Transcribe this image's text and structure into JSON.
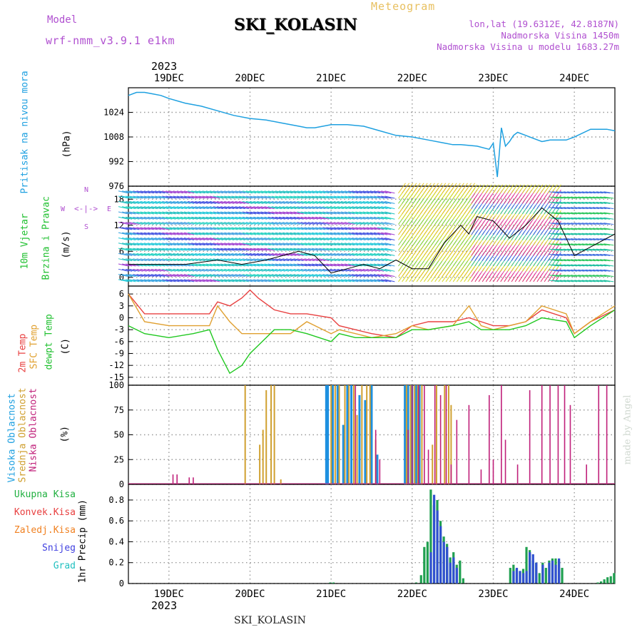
{
  "header": {
    "title": "SKI_KOLASIN",
    "subtitle": "Meteogram",
    "model_label": "Model",
    "model_name": "wrf-nmm_v3.9.1 e1km",
    "location": "lon,lat (19.6312E, 42.8187N)",
    "elevation": "Nadmorska Visina 1450m",
    "model_elevation": "Nadmorska Visina u modelu 1683.27m",
    "footer_title": "SKI_KOLASIN",
    "credit": "made by Angel"
  },
  "colors": {
    "pressure": "#1ea0e0",
    "temp2m": "#e84040",
    "sfc": "#e0a030",
    "dewpt": "#20c820",
    "high_cloud": "#1e90e0",
    "mid_cloud": "#d0a030",
    "low_cloud": "#c0207a",
    "total_precip": "#20b040",
    "conv_precip": "#e84040",
    "frozen_precip": "#f08020",
    "snow": "#4040e0",
    "hail": "#20c0c0",
    "model_text": "#b050d0"
  },
  "x_axis": {
    "year": "2023",
    "day_labels": [
      "19DEC",
      "20DEC",
      "21DEC",
      "22DEC",
      "23DEC",
      "24DEC"
    ],
    "range_days": [
      -0.5,
      5.5
    ]
  },
  "panel_labels": {
    "pressure": [
      "Pritisak na nivou mora",
      "(hPa)"
    ],
    "wind": [
      "10m Vjetar",
      "Brzina i Pravac",
      "(m/s)"
    ],
    "wind_rose": [
      "N",
      "S",
      "W",
      "E"
    ],
    "temp": [
      "2m Temp",
      "SFC Temp",
      "dewpt Temp",
      "(C)"
    ],
    "cloud": [
      "Visoka Oblacnost",
      "Srednja Oblacnost",
      "Niska Oblacnost",
      "(%)"
    ],
    "precip_y": "1hr Precip (mm)",
    "precip_legend": [
      "Ukupna Kisa",
      "Konvek.Kisa",
      "Zaledj.Kisa",
      "Snijeg",
      "Grad"
    ]
  },
  "chart_data": [
    {
      "type": "line",
      "panel": "pressure",
      "ylabel": "(hPa)",
      "ylim": [
        976,
        1040
      ],
      "yticks": [
        976,
        992,
        1008,
        1024
      ],
      "series": [
        {
          "name": "Pritisak na nivou mora",
          "x": [
            -0.5,
            -0.4,
            -0.3,
            -0.2,
            -0.1,
            0,
            0.2,
            0.4,
            0.6,
            0.8,
            1.0,
            1.2,
            1.4,
            1.6,
            1.7,
            1.8,
            2.0,
            2.2,
            2.4,
            2.6,
            2.8,
            3.0,
            3.2,
            3.4,
            3.5,
            3.6,
            3.8,
            3.95,
            4.0,
            4.05,
            4.1,
            4.15,
            4.2,
            4.25,
            4.3,
            4.4,
            4.5,
            4.6,
            4.7,
            4.8,
            4.9,
            5.0,
            5.2,
            5.4,
            5.5
          ],
          "values": [
            1035,
            1037,
            1037,
            1036,
            1035,
            1033,
            1030,
            1028,
            1025,
            1022,
            1020,
            1019,
            1017,
            1015,
            1014,
            1014,
            1016,
            1016,
            1015,
            1012,
            1009,
            1008,
            1006,
            1004,
            1003,
            1003,
            1002,
            1000,
            1004,
            982,
            1014,
            1002,
            1005,
            1009,
            1011,
            1009,
            1007,
            1005,
            1006,
            1006,
            1006,
            1008,
            1013,
            1013,
            1012
          ]
        }
      ]
    },
    {
      "type": "line",
      "panel": "wind",
      "ylabel": "(m/s)",
      "ylim": [
        -2,
        21
      ],
      "yticks": [
        0,
        6,
        12,
        18
      ],
      "series": [
        {
          "name": "Brzina",
          "x": [
            -0.5,
            -0.2,
            0.2,
            0.6,
            0.9,
            1.2,
            1.4,
            1.6,
            1.8,
            2.0,
            2.2,
            2.4,
            2.6,
            2.8,
            3.0,
            3.2,
            3.4,
            3.6,
            3.7,
            3.8,
            4.0,
            4.2,
            4.4,
            4.6,
            4.8,
            5.0,
            5.2,
            5.5
          ],
          "values": [
            3,
            3,
            3,
            4,
            3,
            4,
            5,
            6,
            5,
            1,
            2,
            3,
            2,
            4,
            2,
            2,
            8,
            12,
            10,
            14,
            13,
            9,
            12,
            16,
            13,
            5,
            7,
            10
          ]
        }
      ]
    },
    {
      "type": "line",
      "panel": "temp",
      "ylabel": "(C)",
      "ylim": [
        -17,
        8
      ],
      "yticks": [
        -15,
        -12,
        -9,
        -6,
        -3,
        0,
        3,
        6
      ],
      "x": [
        -0.5,
        -0.3,
        0,
        0.3,
        0.5,
        0.6,
        0.75,
        0.9,
        1.0,
        1.1,
        1.3,
        1.5,
        1.7,
        2.0,
        2.1,
        2.3,
        2.5,
        2.8,
        3.0,
        3.2,
        3.5,
        3.7,
        3.85,
        4.0,
        4.2,
        4.4,
        4.6,
        4.9,
        5.0,
        5.2,
        5.5
      ],
      "series": [
        {
          "name": "2m Temp",
          "values": [
            6,
            1,
            1,
            1,
            1,
            4,
            3,
            5,
            7,
            5,
            2,
            1,
            1,
            0,
            -2,
            -3,
            -4,
            -5,
            -2,
            -1,
            -1,
            0,
            -1,
            -2,
            -2,
            -1,
            2,
            0,
            -4,
            -1,
            2
          ]
        },
        {
          "name": "SFC Temp",
          "values": [
            6,
            -1,
            -2,
            -2,
            -2,
            3,
            -1,
            -4,
            -4,
            -4,
            -4,
            -4,
            -1,
            -4,
            -3,
            -4,
            -5,
            -4,
            -2,
            -3,
            -2,
            3,
            -2,
            -3,
            -2,
            -1,
            3,
            1,
            -4,
            -1,
            3
          ]
        },
        {
          "name": "dewpt Temp",
          "values": [
            -2,
            -4,
            -5,
            -4,
            -3,
            -8,
            -14,
            -12,
            -9,
            -7,
            -3,
            -3,
            -4,
            -6,
            -4,
            -5,
            -5,
            -5,
            -3,
            -3,
            -2,
            -1,
            -3,
            -3,
            -3,
            -2,
            0,
            -1,
            -5,
            -2,
            2
          ]
        }
      ]
    },
    {
      "type": "bar",
      "panel": "cloud",
      "ylabel": "(%)",
      "ylim": [
        0,
        100
      ],
      "yticks": [
        0,
        25,
        50,
        75,
        100
      ],
      "series": [
        {
          "name": "Visoka Oblacnost",
          "x": [
            1.94,
            1.96,
            2.02,
            2.08,
            2.15,
            2.2,
            2.25,
            2.35,
            2.42,
            2.5,
            2.57,
            2.91,
            2.95,
            3.0,
            3.05,
            3.09
          ],
          "values": [
            100,
            100,
            100,
            100,
            60,
            100,
            100,
            90,
            85,
            100,
            30,
            100,
            100,
            100,
            100,
            100
          ]
        },
        {
          "name": "Srednja Oblacnost",
          "x": [
            0.94,
            1.12,
            1.16,
            1.2,
            1.26,
            1.3,
            1.38,
            2.0,
            2.05,
            2.1,
            2.17,
            2.22,
            2.28,
            2.32,
            2.38,
            2.44,
            2.48,
            2.55,
            2.93,
            2.98,
            3.03,
            3.07,
            3.12,
            3.25,
            3.3,
            3.4,
            3.45,
            3.48
          ],
          "values": [
            100,
            40,
            55,
            95,
            100,
            100,
            5,
            100,
            100,
            100,
            100,
            100,
            100,
            70,
            100,
            100,
            100,
            45,
            100,
            100,
            100,
            100,
            100,
            40,
            100,
            100,
            100,
            80
          ]
        },
        {
          "name": "Niska Oblacnost",
          "x": [
            0.05,
            0.1,
            0.25,
            0.3,
            2.3,
            2.55,
            2.6,
            2.95,
            3.0,
            3.08,
            3.15,
            3.2,
            3.28,
            3.35,
            3.42,
            3.48,
            3.55,
            3.7,
            3.85,
            3.95,
            4.0,
            4.1,
            4.15,
            4.3,
            4.45,
            4.6,
            4.7,
            4.8,
            4.88,
            4.95,
            5.15,
            5.3,
            5.4
          ],
          "values": [
            10,
            10,
            7,
            7,
            100,
            55,
            25,
            55,
            100,
            100,
            100,
            35,
            100,
            90,
            100,
            20,
            65,
            80,
            15,
            90,
            25,
            100,
            45,
            20,
            95,
            100,
            100,
            100,
            100,
            80,
            20,
            100,
            100
          ]
        }
      ]
    },
    {
      "type": "bar",
      "panel": "precip",
      "ylabel": "1hr Precip (mm)",
      "ylim": [
        0,
        0.95
      ],
      "yticks": [
        0,
        0.2,
        0.4,
        0.6,
        0.8
      ],
      "series": [
        {
          "name": "Ukupna Kisa",
          "x": [
            2.0,
            2.04,
            3.06,
            3.12,
            3.16,
            3.2,
            3.24,
            3.28,
            3.32,
            3.36,
            3.4,
            3.44,
            3.48,
            3.52,
            3.56,
            3.6,
            3.64,
            4.22,
            4.26,
            4.3,
            4.34,
            4.38,
            4.42,
            4.46,
            4.5,
            4.54,
            4.58,
            4.62,
            4.66,
            4.7,
            4.74,
            4.78,
            4.82,
            4.86,
            5.3,
            5.34,
            5.38,
            5.42,
            5.46,
            5.5
          ],
          "values": [
            0.01,
            0.01,
            0.01,
            0.08,
            0.35,
            0.4,
            0.9,
            0.75,
            0.8,
            0.6,
            0.45,
            0.38,
            0.25,
            0.3,
            0.18,
            0.22,
            0.05,
            0.15,
            0.18,
            0.14,
            0.12,
            0.14,
            0.35,
            0.32,
            0.22,
            0.2,
            0.1,
            0.2,
            0.15,
            0.22,
            0.24,
            0.24,
            0.22,
            0.15,
            0.01,
            0.02,
            0.04,
            0.06,
            0.07,
            0.1
          ]
        },
        {
          "name": "Snijeg",
          "x": [
            3.22,
            3.26,
            3.3,
            3.34,
            3.38,
            3.42,
            3.46,
            3.5,
            3.54,
            4.24,
            4.28,
            4.32,
            4.36,
            4.4,
            4.44,
            4.48,
            4.52,
            4.6,
            4.68,
            4.72,
            4.76,
            4.8
          ],
          "values": [
            0.3,
            0.85,
            0.7,
            0.55,
            0.4,
            0.35,
            0.2,
            0.25,
            0.15,
            0.12,
            0.15,
            0.12,
            0.1,
            0.12,
            0.3,
            0.28,
            0.2,
            0.18,
            0.2,
            0.22,
            0.18,
            0.24
          ]
        }
      ]
    }
  ]
}
